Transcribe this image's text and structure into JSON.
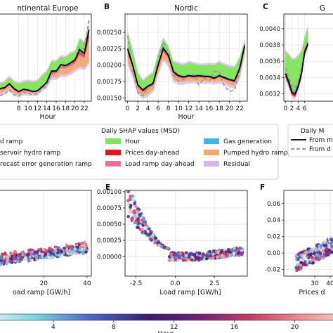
{
  "chart_data": [
    {
      "id": "A",
      "type": "area",
      "panel_letter": "",
      "title": "Continental Europe",
      "title_visible": "ntinental Europe",
      "xlabel": "Hour",
      "ylabel": "",
      "xlim": [
        -0.5,
        23.5
      ],
      "ylim": [
        -0.1,
        1.0
      ],
      "x_ticks": [
        8,
        10,
        12,
        14,
        16,
        18,
        20,
        22
      ],
      "y_ticks": [],
      "grid": true,
      "x": [
        0,
        1,
        2,
        3,
        4,
        5,
        6,
        7,
        8,
        9,
        10,
        11,
        12,
        13,
        14,
        15,
        16,
        17,
        18,
        19,
        20,
        21,
        22,
        23
      ],
      "model": [
        0.28,
        0.2,
        0.12,
        0.07,
        0.06,
        0.07,
        0.12,
        0.06,
        0.02,
        0.05,
        0.04,
        0.02,
        0.03,
        0.08,
        0.14,
        0.28,
        0.28,
        0.36,
        0.35,
        0.38,
        0.42,
        0.55,
        0.5,
        0.8
      ],
      "data": [
        0.22,
        0.13,
        0.05,
        -0.02,
        -0.03,
        -0.01,
        0.04,
        -0.02,
        -0.03,
        0.01,
        0.0,
        -0.02,
        0.0,
        0.05,
        0.1,
        0.24,
        0.25,
        0.33,
        0.33,
        0.36,
        0.42,
        0.58,
        0.56,
        0.93
      ],
      "band_top": [
        0.36,
        0.28,
        0.2,
        0.14,
        0.12,
        0.14,
        0.2,
        0.14,
        0.12,
        0.14,
        0.15,
        0.14,
        0.15,
        0.22,
        0.27,
        0.4,
        0.4,
        0.46,
        0.45,
        0.5,
        0.52,
        0.68,
        0.64,
        0.86
      ],
      "band_bottom": [
        0.18,
        0.12,
        0.06,
        0.02,
        0.0,
        0.02,
        0.06,
        0.0,
        -0.02,
        0.0,
        0.0,
        0.0,
        0.0,
        0.06,
        0.1,
        0.2,
        0.2,
        0.24,
        0.24,
        0.26,
        0.3,
        0.34,
        0.32,
        0.4
      ]
    },
    {
      "id": "B",
      "type": "area",
      "panel_letter": "B",
      "title": "Nordic",
      "xlabel": "Hour",
      "ylabel": "",
      "xlim": [
        -0.5,
        23.5
      ],
      "ylim": [
        0.00145,
        0.00278
      ],
      "x_ticks": [
        0,
        2,
        4,
        6,
        8,
        10,
        12,
        14,
        16,
        18,
        20,
        22
      ],
      "y_ticks": [
        "0.00150",
        "0.00175",
        "0.00200",
        "0.00225",
        "0.00250"
      ],
      "y_tick_values": [
        0.0015,
        0.00175,
        0.002,
        0.00225,
        0.0025
      ],
      "grid": true,
      "x": [
        0,
        1,
        2,
        3,
        4,
        5,
        6,
        7,
        8,
        9,
        10,
        11,
        12,
        13,
        14,
        15,
        16,
        17,
        18,
        19,
        20,
        21,
        22,
        23
      ],
      "model": [
        0.00225,
        0.002,
        0.0017,
        0.00162,
        0.00168,
        0.00172,
        0.002,
        0.00226,
        0.00215,
        0.0019,
        0.00184,
        0.00182,
        0.00184,
        0.00183,
        0.00184,
        0.00183,
        0.00183,
        0.0018,
        0.00184,
        0.00181,
        0.00178,
        0.00176,
        0.00195,
        0.0023
      ],
      "data": [
        0.00245,
        0.0019,
        0.00158,
        0.00153,
        0.00165,
        0.0017,
        0.0021,
        0.00235,
        0.0022,
        0.00185,
        0.00176,
        0.00178,
        0.00182,
        0.00186,
        0.0017,
        0.0018,
        0.00175,
        0.0019,
        0.0019,
        0.00168,
        0.0016,
        0.00162,
        0.0019,
        0.00232
      ],
      "band_top": [
        0.0025,
        0.00222,
        0.00188,
        0.00176,
        0.00182,
        0.00188,
        0.00216,
        0.0024,
        0.00228,
        0.00204,
        0.00202,
        0.002,
        0.00204,
        0.00202,
        0.002,
        0.002,
        0.00201,
        0.002,
        0.00204,
        0.002,
        0.00197,
        0.00196,
        0.0021,
        0.00238
      ],
      "band_bottom": [
        0.00205,
        0.00184,
        0.0016,
        0.00152,
        0.00156,
        0.00162,
        0.00188,
        0.0021,
        0.00202,
        0.00178,
        0.00174,
        0.00174,
        0.00176,
        0.00176,
        0.00176,
        0.00175,
        0.00176,
        0.00174,
        0.00176,
        0.00174,
        0.0017,
        0.00168,
        0.00182,
        0.00218
      ]
    },
    {
      "id": "C",
      "type": "area",
      "panel_letter": "C",
      "title": "G",
      "xlabel": "",
      "ylabel": "",
      "xlim": [
        -0.5,
        23.5
      ],
      "ylim": [
        0.00311,
        0.00418
      ],
      "x_ticks": [
        0,
        2,
        4,
        6
      ],
      "y_ticks": [
        "0.0032",
        "0.0034",
        "0.0036",
        "0.0038",
        "0.0040"
      ],
      "y_tick_values": [
        0.0032,
        0.0034,
        0.0036,
        0.0038,
        0.004
      ],
      "grid": true,
      "x": [
        0,
        1,
        2,
        3,
        4,
        5,
        6,
        7
      ],
      "model": [
        0.00345,
        0.00335,
        0.00322,
        0.0032,
        0.0033,
        0.00345,
        0.00372,
        0.00382
      ],
      "data": [
        0.00352,
        0.0034,
        0.0033,
        0.00328,
        0.00336,
        0.0035,
        0.00375,
        0.00388
      ],
      "band_top": [
        0.00372,
        0.00368,
        0.00362,
        0.00362,
        0.00366,
        0.00372,
        0.0039,
        0.00402
      ],
      "band_bottom": [
        0.0034,
        0.0033,
        0.00318,
        0.00316,
        0.00326,
        0.0034,
        0.00368,
        0.00378
      ]
    },
    {
      "id": "D",
      "type": "scatter",
      "panel_letter": "",
      "xlabel": "oad ramp [GW/h]",
      "ylabel": "",
      "xlim": [
        -10,
        42
      ],
      "ylim": [
        -0.2,
        1.0
      ],
      "x_ticks": [
        20,
        40
      ],
      "y_ticks": [],
      "grid": true
    },
    {
      "id": "E",
      "type": "scatter",
      "panel_letter": "E",
      "xlabel": "Load ramp [GW/h]",
      "ylabel": "",
      "xlim": [
        -3.2,
        4.6
      ],
      "ylim": [
        -0.0003,
        0.00102
      ],
      "x_ticks": [
        "-2.5",
        "0.0",
        "2.5"
      ],
      "x_tick_values": [
        -2.5,
        0.0,
        2.5
      ],
      "y_ticks": [
        "0.00000",
        "0.00025",
        "0.00050",
        "0.00075",
        "0.00100"
      ],
      "y_tick_values": [
        0.0,
        0.00025,
        0.0005,
        0.00075,
        0.001
      ],
      "grid": true
    },
    {
      "id": "F",
      "type": "scatter",
      "panel_letter": "F",
      "xlabel": "Prices d",
      "ylabel": "",
      "xlim": [
        10,
        60
      ],
      "ylim": [
        -0.028,
        0.076
      ],
      "x_ticks": [
        30,
        40
      ],
      "y_ticks": [
        "-0.02",
        "0.00",
        "0.02",
        "0.04",
        "0.06"
      ],
      "y_tick_values": [
        -0.02,
        0.0,
        0.02,
        0.04,
        0.06
      ],
      "grid": true
    }
  ],
  "legend": {
    "title": "Daily SHAP values (MSD)",
    "items": [
      {
        "label": "d ramp",
        "color": ""
      },
      {
        "label": "Hour",
        "color": "#7ee85c"
      },
      {
        "label": "Gas generation",
        "color": "#3ab7e0"
      },
      {
        "label": "servoir hydro ramp",
        "color": ""
      },
      {
        "label": "Prices day-ahead",
        "color": "#d7191c"
      },
      {
        "label": "Pumped hydro ramp",
        "color": "#f4a96b"
      },
      {
        "label": "recast error generation ramp",
        "color": ""
      },
      {
        "label": "Load ramp day-ahead",
        "color": "#ef6f9c"
      },
      {
        "label": "Residual",
        "color": "#d8b4f0"
      }
    ]
  },
  "legend2": {
    "title": "Daily M",
    "items": [
      {
        "label": "From m",
        "style": "solid"
      },
      {
        "label": "From d",
        "style": "dashed"
      }
    ]
  },
  "colorbar": {
    "label": "Hour",
    "ticks": [
      "4",
      "8",
      "12",
      "16",
      "20"
    ],
    "tick_values": [
      4,
      8,
      12,
      16,
      20
    ],
    "range": [
      0,
      23
    ]
  },
  "colors": {
    "hour": "#7ee85c",
    "prices": "#d7191c",
    "gas": "#3ab7e0",
    "pumped": "#f4a96b",
    "loadramp": "#ef6f9c",
    "residual": "#d8b4f0"
  }
}
